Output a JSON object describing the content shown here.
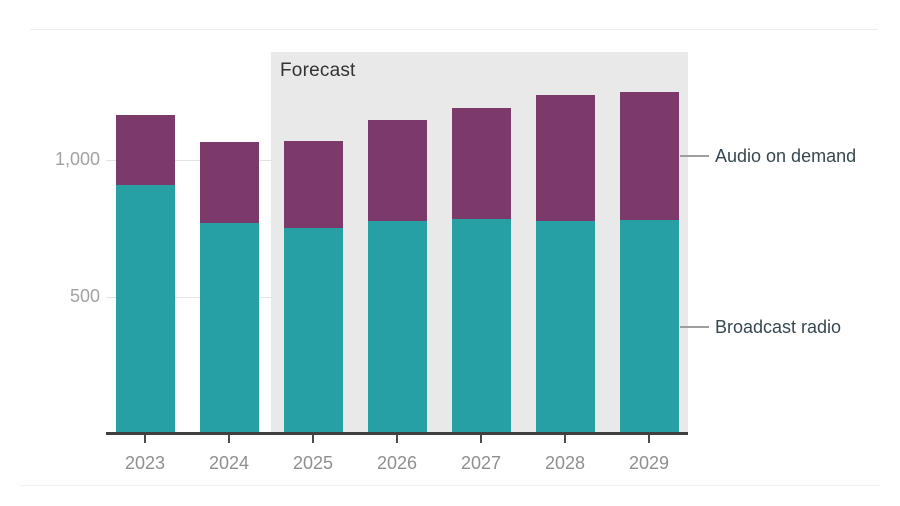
{
  "chart_data": {
    "type": "bar",
    "stacked": true,
    "categories": [
      "2023",
      "2024",
      "2025",
      "2026",
      "2027",
      "2028",
      "2029"
    ],
    "series": [
      {
        "name": "Broadcast radio",
        "color": "#26a0a3",
        "values": [
          910,
          770,
          750,
          775,
          785,
          775,
          780
        ]
      },
      {
        "name": "Audio on demand",
        "color": "#7c3a6b",
        "values": [
          255,
          295,
          320,
          370,
          405,
          460,
          470
        ]
      }
    ],
    "ylabel": "",
    "xlabel": "",
    "ylim": [
      0,
      1500
    ],
    "gridlines": [
      500,
      1000
    ],
    "yticks": [
      {
        "value": 500,
        "label": "500"
      },
      {
        "value": 1000,
        "label": "1,000"
      }
    ],
    "legend_position": "right-callouts",
    "forecast": {
      "label": "Forecast",
      "start_category": "2025",
      "background": "#e9e9e9"
    }
  }
}
